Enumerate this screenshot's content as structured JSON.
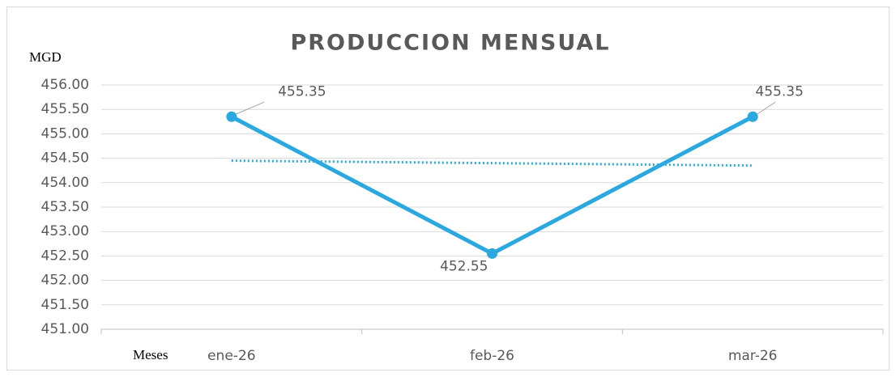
{
  "chart_data": {
    "type": "line",
    "title": "PRODUCCION MENSUAL",
    "y_label": "MGD",
    "x_label": "Meses",
    "categories": [
      "ene-26",
      "feb-26",
      "mar-26"
    ],
    "series": [
      {
        "color": "#2aa8df",
        "values": [
          455.35,
          452.55,
          455.35
        ]
      }
    ],
    "trendline": {
      "color": "#2aa8df",
      "style": "dotted",
      "values": [
        454.45,
        454.35
      ]
    },
    "ylim": [
      451,
      456
    ],
    "yticks": [
      {
        "value": 451,
        "label": "451.00"
      },
      {
        "value": 451.5,
        "label": "451.50"
      },
      {
        "value": 452,
        "label": "452.00"
      },
      {
        "value": 452.5,
        "label": "452.50"
      },
      {
        "value": 453,
        "label": "453.00"
      },
      {
        "value": 453.5,
        "label": "453.50"
      },
      {
        "value": 454,
        "label": "454.00"
      },
      {
        "value": 454.5,
        "label": "454.50"
      },
      {
        "value": 455,
        "label": "455.00"
      },
      {
        "value": 455.5,
        "label": "455.50"
      },
      {
        "value": 456,
        "label": "456.00"
      }
    ],
    "grid": true
  }
}
